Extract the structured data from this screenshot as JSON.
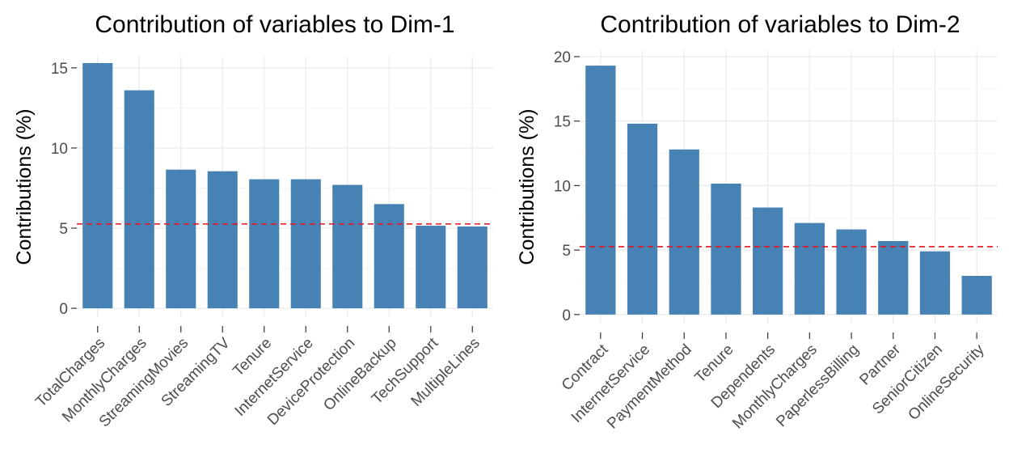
{
  "colors": {
    "bar": "#4682B4",
    "reference_line": "#E8121F",
    "background": "#FFFFFF"
  },
  "chart_data": [
    {
      "type": "bar",
      "title": "Contribution of variables to Dim-1",
      "xlabel": "",
      "ylabel": "Contributions (%)",
      "categories": [
        "TotalCharges",
        "MonthlyCharges",
        "StreamingMovies",
        "StreamingTV",
        "Tenure",
        "InternetService",
        "DeviceProtection",
        "OnlineBackup",
        "TechSupport",
        "MultipleLines"
      ],
      "values": [
        15.3,
        13.6,
        8.65,
        8.55,
        8.05,
        8.05,
        7.7,
        6.5,
        5.15,
        5.1
      ],
      "ylim": [
        0,
        15.5
      ],
      "yticks": [
        0,
        5,
        10,
        15
      ],
      "reference_line": 5.26,
      "grid": true,
      "legend": "none"
    },
    {
      "type": "bar",
      "title": "Contribution of variables to Dim-2",
      "xlabel": "",
      "ylabel": "Contributions (%)",
      "categories": [
        "Contract",
        "InternetService",
        "PaymentMethod",
        "Tenure",
        "Dependents",
        "MonthlyCharges",
        "PaperlessBilling",
        "Partner",
        "SeniorCitizen",
        "OnlineSecurity"
      ],
      "values": [
        19.3,
        14.8,
        12.8,
        10.15,
        8.3,
        7.1,
        6.6,
        5.7,
        4.9,
        3.0
      ],
      "ylim": [
        0,
        20
      ],
      "yticks": [
        0,
        5,
        10,
        15,
        20
      ],
      "reference_line": 5.26,
      "grid": true,
      "legend": "none"
    }
  ]
}
